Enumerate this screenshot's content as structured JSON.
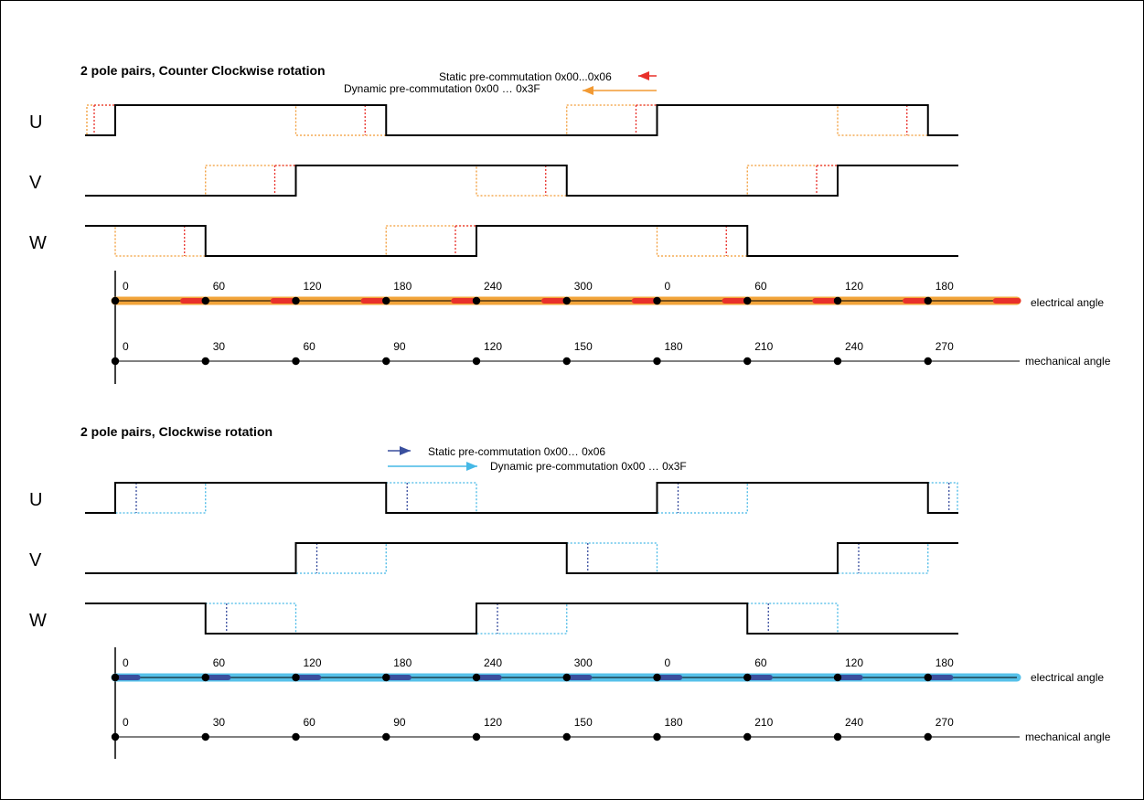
{
  "colors": {
    "ccw_static": "#e8302a",
    "ccw_dynamic": "#f29a33",
    "cw_static": "#3a4f9e",
    "cw_dynamic": "#45b8e6",
    "ccw_axis_band": "#f2a43a",
    "cw_axis_band": "#56c1ea",
    "signal": "#000000"
  },
  "panels": [
    {
      "id": "ccw",
      "title": "2 pole pairs, Counter Clockwise rotation",
      "legend_static": "Static pre-commutation 0x00...0x06",
      "legend_dynamic": "Dynamic pre-commutation 0x00 … 0x3F",
      "signals": [
        "U",
        "V",
        "W"
      ],
      "electrical_ticks": [
        "0",
        "60",
        "120",
        "180",
        "240",
        "300",
        "0",
        "60",
        "120",
        "180"
      ],
      "mechanical_ticks": [
        "0",
        "30",
        "60",
        "90",
        "120",
        "150",
        "180",
        "210",
        "240",
        "270"
      ],
      "electrical_label": "electrical angle",
      "mechanical_label": "mechanical angle"
    },
    {
      "id": "cw",
      "title": "2 pole pairs, Clockwise rotation",
      "legend_static": "Static pre-commutation 0x00… 0x06",
      "legend_dynamic": "Dynamic pre-commutation 0x00 … 0x3F",
      "signals": [
        "U",
        "V",
        "W"
      ],
      "electrical_ticks": [
        "0",
        "60",
        "120",
        "180",
        "240",
        "300",
        "0",
        "60",
        "120",
        "180"
      ],
      "mechanical_ticks": [
        "0",
        "30",
        "60",
        "90",
        "120",
        "150",
        "180",
        "210",
        "240",
        "270"
      ],
      "electrical_label": "electrical angle",
      "mechanical_label": "mechanical angle"
    }
  ]
}
